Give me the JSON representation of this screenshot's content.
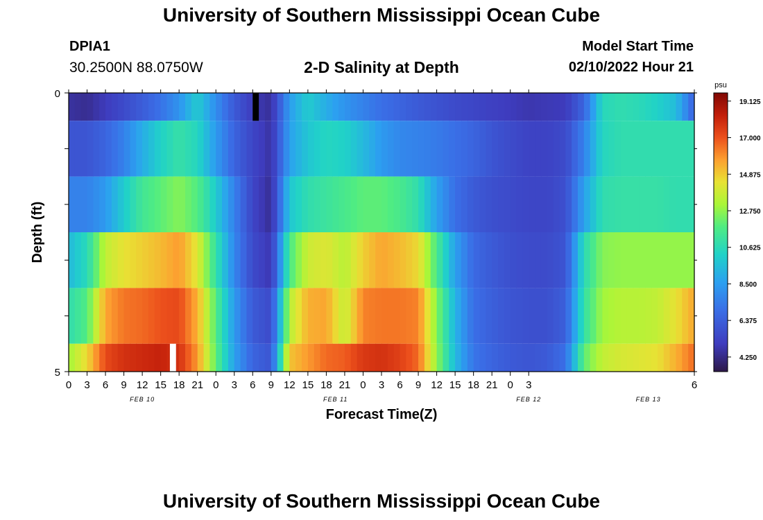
{
  "header": {
    "title": "University of Southern Mississippi Ocean Cube",
    "station_id": "DPIA1",
    "station_coords": "30.2500N  88.0750W",
    "chart_title": "2-D Salinity at Depth",
    "model_start_label": "Model Start Time",
    "model_start_value": "02/10/2022 Hour 21"
  },
  "footer": {
    "title": "University of Southern Mississippi Ocean Cube"
  },
  "chart_data": {
    "type": "heatmap",
    "title": "2-D Salinity at Depth",
    "xlabel": "Forecast Time(Z)",
    "ylabel": "Depth (ft)",
    "ylim": [
      0,
      5
    ],
    "y_ticks": [
      "0",
      "5"
    ],
    "x_hour_range": [
      0,
      102
    ],
    "x_tick_labels": [
      "0",
      "3",
      "6",
      "9",
      "12",
      "15",
      "18",
      "21",
      "0",
      "3",
      "6",
      "9",
      "12",
      "15",
      "18",
      "21",
      "0",
      "3",
      "6",
      "9",
      "12",
      "15",
      "18",
      "21",
      "0",
      "3",
      "6"
    ],
    "date_labels": [
      {
        "label": "FEB 10",
        "hour": 12
      },
      {
        "label": "FEB 11",
        "hour": 43.5
      },
      {
        "label": "FEB 12",
        "hour": 75
      },
      {
        "label": "FEB 13",
        "hour": 94.5
      }
    ],
    "colorbar": {
      "unit": "psu",
      "min": 3.4,
      "max": 19.6,
      "tick_values": [
        "19.125",
        "17.000",
        "14.875",
        "12.750",
        "10.625",
        "8.500",
        "6.375",
        "4.250"
      ]
    },
    "depth_layers": [
      "0-0.5",
      "0.5-1.5",
      "1.5-2.5",
      "2.5-3.5",
      "3.5-4.5",
      "4.5-5"
    ],
    "layer_series": [
      {
        "layer": "0-0.5",
        "hours": [
          0,
          3,
          6,
          9,
          12,
          15,
          18,
          21,
          24,
          27,
          30,
          33,
          36,
          39,
          42,
          45,
          48,
          51,
          54,
          57,
          60,
          63,
          66,
          69,
          72,
          75,
          78,
          81,
          84,
          87,
          90,
          93,
          96,
          99,
          102
        ],
        "salinity": [
          4.6,
          4.4,
          5.0,
          5.6,
          6.3,
          7.1,
          8.2,
          10.0,
          8.0,
          6.2,
          5.0,
          4.5,
          8.5,
          10.0,
          9.0,
          8.2,
          7.6,
          7.0,
          6.6,
          6.2,
          5.9,
          5.6,
          5.4,
          5.2,
          5.0,
          4.8,
          4.9,
          5.0,
          6.6,
          10.5,
          10.8,
          10.6,
          10.2,
          9.5,
          6.5
        ]
      },
      {
        "layer": "0.5-1.5",
        "hours": [
          0,
          3,
          6,
          9,
          12,
          15,
          18,
          21,
          24,
          27,
          30,
          33,
          36,
          39,
          42,
          45,
          48,
          51,
          54,
          57,
          60,
          63,
          66,
          69,
          72,
          75,
          78,
          81,
          84,
          87,
          90,
          93,
          96,
          99,
          102
        ],
        "salinity": [
          6.0,
          6.0,
          6.6,
          7.6,
          9.0,
          10.2,
          11.0,
          10.4,
          8.4,
          6.6,
          5.4,
          4.6,
          8.6,
          9.8,
          10.4,
          10.2,
          9.4,
          8.4,
          7.8,
          7.6,
          7.4,
          7.0,
          6.6,
          6.0,
          5.6,
          5.3,
          5.3,
          5.6,
          7.6,
          10.4,
          10.8,
          10.8,
          10.8,
          10.8,
          10.8
        ]
      },
      {
        "layer": "1.5-2.5",
        "hours": [
          0,
          3,
          6,
          9,
          12,
          15,
          18,
          21,
          24,
          27,
          30,
          33,
          36,
          39,
          42,
          45,
          48,
          51,
          54,
          57,
          60,
          63,
          66,
          69,
          72,
          75,
          78,
          81,
          84,
          87,
          90,
          93,
          96,
          99,
          102
        ],
        "salinity": [
          7.6,
          7.6,
          8.4,
          10.0,
          11.4,
          12.0,
          12.6,
          11.8,
          10.0,
          7.6,
          5.4,
          4.4,
          9.8,
          10.8,
          11.2,
          11.6,
          12.0,
          12.0,
          11.6,
          10.8,
          8.6,
          7.0,
          6.2,
          5.8,
          5.6,
          5.4,
          5.4,
          5.8,
          8.6,
          10.8,
          11.0,
          11.0,
          11.0,
          10.8,
          10.8
        ]
      },
      {
        "layer": "2.5-3.5",
        "hours": [
          0,
          3,
          6,
          9,
          12,
          15,
          18,
          21,
          24,
          27,
          30,
          33,
          36,
          39,
          42,
          45,
          48,
          51,
          54,
          57,
          60,
          63,
          66,
          69,
          72,
          75,
          78,
          81,
          84,
          87,
          90,
          93,
          96,
          99,
          102
        ],
        "salinity": [
          9.4,
          10.6,
          13.6,
          14.4,
          14.8,
          15.2,
          15.8,
          14.2,
          11.0,
          7.8,
          5.6,
          4.8,
          11.6,
          13.8,
          14.2,
          13.4,
          14.8,
          15.6,
          15.2,
          14.6,
          11.6,
          8.6,
          6.8,
          6.2,
          5.8,
          5.6,
          5.6,
          6.0,
          10.6,
          12.6,
          12.8,
          12.8,
          12.8,
          12.8,
          12.8
        ]
      },
      {
        "layer": "3.5-4.5",
        "hours": [
          0,
          3,
          6,
          9,
          12,
          15,
          18,
          21,
          24,
          27,
          30,
          33,
          36,
          39,
          42,
          45,
          48,
          51,
          54,
          57,
          60,
          63,
          66,
          69,
          72,
          75,
          78,
          81,
          84,
          87,
          90,
          93,
          96,
          99,
          102
        ],
        "salinity": [
          10.8,
          11.8,
          15.6,
          16.4,
          16.6,
          17.0,
          17.2,
          15.4,
          11.8,
          8.4,
          6.2,
          5.6,
          13.4,
          15.4,
          15.6,
          13.6,
          16.2,
          16.4,
          16.4,
          16.2,
          12.6,
          9.2,
          7.0,
          6.4,
          6.0,
          5.8,
          5.8,
          6.4,
          11.0,
          13.0,
          13.4,
          13.4,
          13.6,
          14.4,
          15.6
        ]
      },
      {
        "layer": "4.5-5",
        "hours": [
          0,
          3,
          6,
          9,
          12,
          15,
          18,
          21,
          24,
          27,
          30,
          33,
          36,
          39,
          42,
          45,
          48,
          51,
          54,
          57,
          60,
          63,
          66,
          69,
          72,
          75,
          78,
          81,
          84,
          87,
          90,
          93,
          96,
          99,
          102
        ],
        "salinity": [
          13.0,
          14.6,
          17.2,
          17.8,
          18.0,
          18.2,
          17.8,
          15.8,
          12.0,
          8.6,
          6.6,
          6.0,
          15.0,
          15.8,
          16.6,
          16.8,
          17.6,
          17.8,
          17.4,
          16.6,
          12.8,
          9.4,
          7.2,
          6.6,
          6.2,
          6.0,
          6.2,
          7.0,
          12.0,
          13.6,
          14.0,
          14.2,
          14.4,
          15.4,
          16.6
        ]
      }
    ],
    "missing": [
      {
        "layer": "0-0.5",
        "hour": 30.5,
        "color": "#000000"
      },
      {
        "layer": "4.5-5",
        "hour": 17,
        "color": "#ffffff"
      }
    ]
  }
}
